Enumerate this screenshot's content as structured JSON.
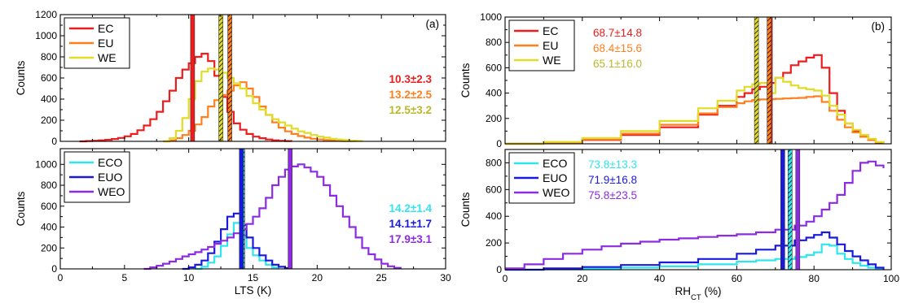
{
  "chart_data": [
    {
      "id": "a_top",
      "type": "line",
      "panel_label": "(a)",
      "ylabel": "Counts",
      "xlabel": "",
      "xlim": [
        0,
        30
      ],
      "ylim": [
        0,
        1200
      ],
      "xticks": [
        0,
        5,
        10,
        15,
        20,
        25,
        30
      ],
      "yticks": [
        0,
        200,
        400,
        600,
        800,
        1000,
        1200
      ],
      "show_xticklabels": false,
      "legend": [
        "EC",
        "EU",
        "WE"
      ],
      "series": [
        {
          "name": "EC",
          "color": "#ee1c1c",
          "x": [
            1.5,
            2,
            2.5,
            3,
            3.5,
            4,
            4.5,
            5,
            5.5,
            6,
            6.5,
            7,
            7.5,
            8,
            8.5,
            9,
            9.5,
            10,
            10.5,
            11,
            11.5,
            12,
            12.5,
            13,
            13.5,
            14,
            14.5,
            15,
            15.5,
            16,
            16.5,
            17,
            17.5,
            18
          ],
          "y": [
            0,
            3,
            6,
            10,
            15,
            22,
            32,
            48,
            70,
            105,
            150,
            210,
            280,
            380,
            480,
            600,
            680,
            740,
            800,
            830,
            760,
            620,
            420,
            280,
            170,
            110,
            70,
            45,
            30,
            18,
            10,
            5,
            3,
            0
          ]
        },
        {
          "name": "EU",
          "color": "#ff7f1e",
          "x": [
            8,
            8.5,
            9,
            9.5,
            10,
            10.5,
            11,
            11.5,
            12,
            12.5,
            13,
            13.5,
            14,
            14.5,
            15,
            15.5,
            16,
            16.5,
            17,
            17.5,
            18,
            18.5,
            19,
            19.5,
            20,
            20.5,
            21,
            21.5,
            22,
            22.5,
            23
          ],
          "y": [
            0,
            10,
            30,
            60,
            100,
            160,
            230,
            330,
            390,
            440,
            480,
            530,
            560,
            500,
            420,
            330,
            250,
            180,
            130,
            95,
            70,
            50,
            35,
            25,
            18,
            12,
            8,
            5,
            3,
            2,
            0
          ]
        },
        {
          "name": "WE",
          "color": "#e1dc24",
          "x": [
            8,
            8.5,
            9,
            9.5,
            10,
            10.5,
            11,
            11.5,
            12,
            12.5,
            13,
            13.5,
            14,
            14.5,
            15,
            15.5,
            16,
            16.5,
            17,
            17.5,
            18,
            18.5,
            19,
            19.5,
            20,
            20.5,
            21,
            21.5,
            22,
            22.5,
            23,
            23.5
          ],
          "y": [
            0,
            30,
            100,
            220,
            400,
            570,
            660,
            690,
            680,
            650,
            600,
            550,
            500,
            430,
            360,
            300,
            250,
            210,
            180,
            150,
            120,
            95,
            80,
            60,
            45,
            35,
            25,
            18,
            12,
            7,
            4,
            0
          ]
        }
      ],
      "vbands": [
        {
          "x": 10.3,
          "color": "#ee1c1c",
          "style": "solid"
        },
        {
          "x": 13.2,
          "color": "#ff7f1e",
          "style": "hatched"
        },
        {
          "x": 12.5,
          "color": "#e1dc24",
          "style": "hatched"
        }
      ],
      "annotations": [
        {
          "text": "10.3±2.3",
          "color": "#ee1c1c"
        },
        {
          "text": "13.2±2.5",
          "color": "#ff7f1e"
        },
        {
          "text": "12.5±3.2",
          "color": "#bdb82a"
        }
      ]
    },
    {
      "id": "a_bottom",
      "type": "line",
      "panel_label": "",
      "ylabel": "Counts",
      "xlabel": "LTS (K)",
      "xlim": [
        0,
        30
      ],
      "ylim": [
        0,
        1150
      ],
      "xticks": [
        0,
        5,
        10,
        15,
        20,
        25,
        30
      ],
      "yticks": [
        0,
        200,
        400,
        600,
        800,
        1000
      ],
      "show_xticklabels": true,
      "legend": [
        "ECO",
        "EUO",
        "WEO"
      ],
      "series": [
        {
          "name": "ECO",
          "color": "#2ee6ee",
          "x": [
            10.5,
            11,
            11.5,
            12,
            12.5,
            13,
            13.5,
            14,
            14.5,
            15,
            15.5,
            16,
            16.5,
            17
          ],
          "y": [
            0,
            20,
            60,
            120,
            220,
            330,
            440,
            320,
            200,
            130,
            80,
            40,
            15,
            0
          ]
        },
        {
          "name": "EUO",
          "color": "#1a1adf",
          "x": [
            9.5,
            10,
            10.5,
            11,
            11.5,
            12,
            12.5,
            13,
            13.5,
            14,
            14.5,
            15,
            15.5,
            16,
            16.5,
            17,
            17.5,
            18
          ],
          "y": [
            0,
            15,
            40,
            80,
            150,
            260,
            380,
            500,
            530,
            420,
            300,
            200,
            130,
            80,
            40,
            20,
            8,
            0
          ]
        },
        {
          "name": "WEO",
          "color": "#8c2be2",
          "x": [
            6.5,
            7,
            7.5,
            8,
            8.5,
            9,
            9.5,
            10,
            10.5,
            11,
            11.5,
            12,
            12.5,
            13,
            13.5,
            14,
            14.5,
            15,
            15.5,
            16,
            16.5,
            17,
            17.5,
            18,
            18.5,
            19,
            19.5,
            20,
            20.5,
            21,
            21.5,
            22,
            22.5,
            23,
            23.5,
            24,
            24.5,
            25,
            25.5,
            26,
            26.5
          ],
          "y": [
            0,
            15,
            30,
            50,
            70,
            95,
            120,
            140,
            160,
            185,
            210,
            240,
            270,
            300,
            340,
            380,
            430,
            500,
            580,
            680,
            800,
            880,
            950,
            980,
            1000,
            970,
            930,
            880,
            800,
            700,
            600,
            500,
            400,
            300,
            200,
            140,
            90,
            50,
            25,
            10,
            0
          ]
        }
      ],
      "vbands": [
        {
          "x": 14.2,
          "color": "#2ee6ee",
          "style": "hatched"
        },
        {
          "x": 14.1,
          "color": "#1a1adf",
          "style": "solid"
        },
        {
          "x": 17.9,
          "color": "#8c2be2",
          "style": "solid"
        }
      ],
      "annotations": [
        {
          "text": "14.2±1.4",
          "color": "#2ee6ee"
        },
        {
          "text": "14.1±1.7",
          "color": "#1a1adf"
        },
        {
          "text": "17.9±3.1",
          "color": "#8c2be2"
        }
      ]
    },
    {
      "id": "b_top",
      "type": "line",
      "panel_label": "(b)",
      "ylabel": "Counts",
      "xlabel": "",
      "xlim": [
        0,
        100
      ],
      "ylim": [
        0,
        1000
      ],
      "xticks": [
        0,
        20,
        40,
        60,
        80,
        100
      ],
      "yticks": [
        0,
        200,
        400,
        600,
        800,
        1000
      ],
      "show_xticklabels": false,
      "legend": [
        "EC",
        "EU",
        "WE"
      ],
      "series": [
        {
          "name": "EC",
          "color": "#ee1c1c",
          "x": [
            0,
            10,
            20,
            30,
            40,
            50,
            55,
            60,
            62,
            64,
            66,
            68,
            70,
            72,
            74,
            76,
            78,
            80,
            82,
            84,
            86,
            88,
            90,
            92,
            94,
            96,
            98
          ],
          "y": [
            0,
            10,
            30,
            70,
            130,
            230,
            300,
            370,
            400,
            430,
            450,
            480,
            520,
            560,
            620,
            650,
            680,
            700,
            600,
            400,
            260,
            160,
            100,
            60,
            30,
            10,
            0
          ]
        },
        {
          "name": "EU",
          "color": "#ff7f1e",
          "x": [
            0,
            10,
            20,
            30,
            40,
            50,
            55,
            60,
            62,
            64,
            66,
            68,
            70,
            72,
            74,
            76,
            78,
            80,
            82,
            84,
            86,
            88,
            90,
            92,
            94,
            96,
            98
          ],
          "y": [
            0,
            10,
            35,
            80,
            150,
            240,
            290,
            320,
            335,
            345,
            350,
            352,
            355,
            358,
            360,
            362,
            370,
            375,
            330,
            260,
            190,
            130,
            90,
            55,
            30,
            12,
            0
          ]
        },
        {
          "name": "WE",
          "color": "#e1dc24",
          "x": [
            0,
            10,
            20,
            30,
            40,
            50,
            55,
            60,
            62,
            64,
            66,
            68,
            70,
            72,
            74,
            76,
            78,
            80,
            82,
            84,
            86,
            88,
            90,
            92,
            94,
            96,
            98
          ],
          "y": [
            0,
            15,
            45,
            100,
            180,
            280,
            340,
            420,
            450,
            470,
            480,
            400,
            520,
            490,
            460,
            440,
            430,
            420,
            380,
            300,
            230,
            160,
            110,
            70,
            40,
            15,
            0
          ]
        }
      ],
      "vbands": [
        {
          "x": 68.7,
          "color": "#ee1c1c",
          "style": "solid"
        },
        {
          "x": 68.4,
          "color": "#ff7f1e",
          "style": "hatched"
        },
        {
          "x": 65.1,
          "color": "#e1dc24",
          "style": "hatched"
        }
      ],
      "annotations": [
        {
          "text": "68.7±14.8",
          "color": "#ee1c1c"
        },
        {
          "text": "68.4±15.6",
          "color": "#ff7f1e"
        },
        {
          "text": "65.1±16.0",
          "color": "#bdb82a"
        }
      ]
    },
    {
      "id": "b_bottom",
      "type": "line",
      "panel_label": "",
      "ylabel": "Counts",
      "xlabel": "RHCT (%)",
      "xlim": [
        0,
        100
      ],
      "ylim": [
        0,
        900
      ],
      "xticks": [
        0,
        20,
        40,
        60,
        80,
        100
      ],
      "yticks": [
        0,
        200,
        400,
        600,
        800
      ],
      "show_xticklabels": true,
      "legend": [
        "ECO",
        "EUO",
        "WEO"
      ],
      "series": [
        {
          "name": "ECO",
          "color": "#2ee6ee",
          "x": [
            0,
            10,
            20,
            30,
            40,
            50,
            60,
            65,
            70,
            75,
            78,
            80,
            82,
            84,
            86,
            88,
            90,
            92,
            94,
            96,
            98
          ],
          "y": [
            0,
            3,
            8,
            15,
            25,
            40,
            60,
            70,
            80,
            95,
            110,
            130,
            190,
            180,
            120,
            80,
            50,
            30,
            15,
            5,
            0
          ]
        },
        {
          "name": "EUO",
          "color": "#1a1adf",
          "x": [
            0,
            10,
            20,
            30,
            40,
            50,
            60,
            65,
            70,
            75,
            78,
            80,
            82,
            84,
            86,
            88,
            90,
            92,
            94,
            96,
            98
          ],
          "y": [
            0,
            10,
            20,
            35,
            55,
            80,
            120,
            150,
            180,
            220,
            240,
            260,
            280,
            240,
            190,
            140,
            100,
            70,
            40,
            15,
            0
          ]
        },
        {
          "name": "WEO",
          "color": "#8c2be2",
          "x": [
            0,
            5,
            10,
            15,
            20,
            25,
            30,
            35,
            40,
            45,
            50,
            55,
            60,
            65,
            70,
            75,
            78,
            80,
            82,
            84,
            86,
            88,
            90,
            92,
            94,
            96,
            98
          ],
          "y": [
            10,
            40,
            80,
            120,
            150,
            175,
            195,
            210,
            225,
            235,
            245,
            255,
            265,
            280,
            300,
            330,
            360,
            400,
            450,
            500,
            560,
            650,
            740,
            800,
            810,
            780,
            760
          ]
        }
      ],
      "vbands": [
        {
          "x": 73.8,
          "color": "#2ee6ee",
          "style": "hatched"
        },
        {
          "x": 71.9,
          "color": "#1a1adf",
          "style": "solid"
        },
        {
          "x": 75.8,
          "color": "#8c2be2",
          "style": "solid"
        }
      ],
      "annotations": [
        {
          "text": "73.8±13.3",
          "color": "#2ee6ee"
        },
        {
          "text": "71.9±16.8",
          "color": "#1a1adf"
        },
        {
          "text": "75.8±23.5",
          "color": "#8c2be2"
        }
      ]
    }
  ],
  "xlabel_b_main": "RH",
  "xlabel_b_sub": "CT",
  "xlabel_b_unit": " (%)"
}
